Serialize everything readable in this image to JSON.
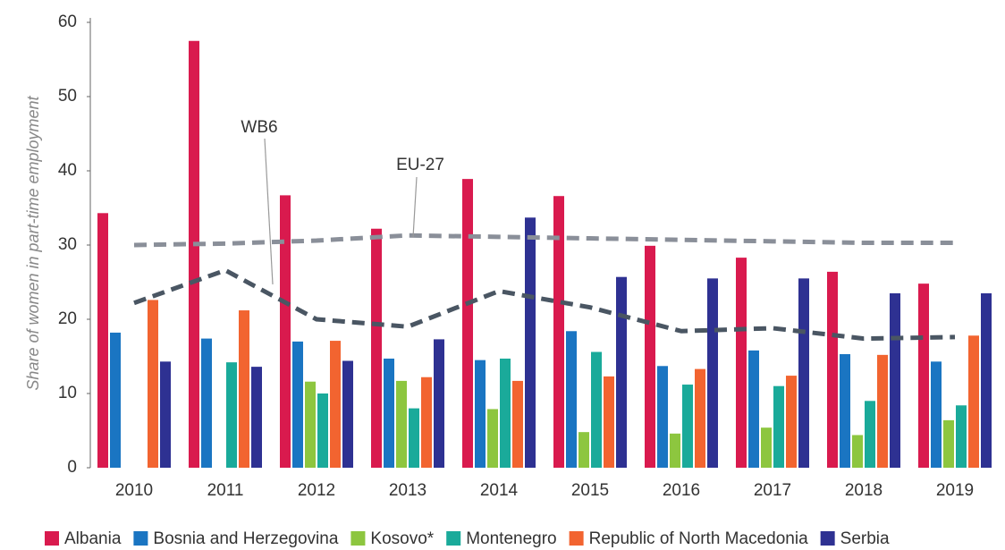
{
  "chart_data": {
    "type": "bar",
    "y_label": "Share of women in part-time employment",
    "categories": [
      "2010",
      "2011",
      "2012",
      "2013",
      "2014",
      "2015",
      "2016",
      "2017",
      "2018",
      "2019"
    ],
    "ylim": [
      0,
      60
    ],
    "yticks": [
      0,
      10,
      20,
      30,
      40,
      50,
      60
    ],
    "grid": false,
    "legend": "bottom",
    "series": [
      {
        "name": "Albania",
        "color": "#d91a4e",
        "values": [
          34.3,
          57.5,
          36.7,
          32.2,
          38.9,
          36.6,
          29.9,
          28.3,
          26.4,
          24.8
        ]
      },
      {
        "name": "Bosnia and Herzegovina",
        "color": "#1a75c2",
        "values": [
          18.2,
          17.4,
          17.0,
          14.7,
          14.5,
          18.4,
          13.7,
          15.8,
          15.3,
          14.3
        ]
      },
      {
        "name": "Kosovo*",
        "color": "#8dc63f",
        "values": [
          null,
          null,
          11.6,
          11.7,
          7.9,
          4.8,
          4.6,
          5.4,
          4.4,
          6.4
        ]
      },
      {
        "name": "Montenegro",
        "color": "#1aaa9a",
        "values": [
          null,
          14.2,
          10.0,
          8.0,
          14.7,
          15.6,
          11.2,
          11.0,
          9.0,
          8.4
        ]
      },
      {
        "name": "Republic of North Macedonia",
        "color": "#f26430",
        "values": [
          22.6,
          21.2,
          17.1,
          12.2,
          11.7,
          12.3,
          13.3,
          12.4,
          15.2,
          17.8
        ]
      },
      {
        "name": "Serbia",
        "color": "#2e3192",
        "values": [
          14.3,
          13.6,
          14.4,
          17.3,
          33.7,
          25.7,
          25.5,
          25.5,
          23.5,
          23.5
        ]
      }
    ],
    "lines": [
      {
        "name": "WB6",
        "color": "#4a5663",
        "style": "dashed",
        "values": [
          22.2,
          26.6,
          20.0,
          19.0,
          23.8,
          21.6,
          18.4,
          18.8,
          17.4,
          17.6
        ]
      },
      {
        "name": "EU-27",
        "color": "#8a8f99",
        "style": "dashed",
        "values": [
          30.0,
          30.2,
          30.6,
          31.3,
          31.1,
          30.9,
          30.7,
          30.5,
          30.3,
          30.3
        ]
      }
    ]
  }
}
